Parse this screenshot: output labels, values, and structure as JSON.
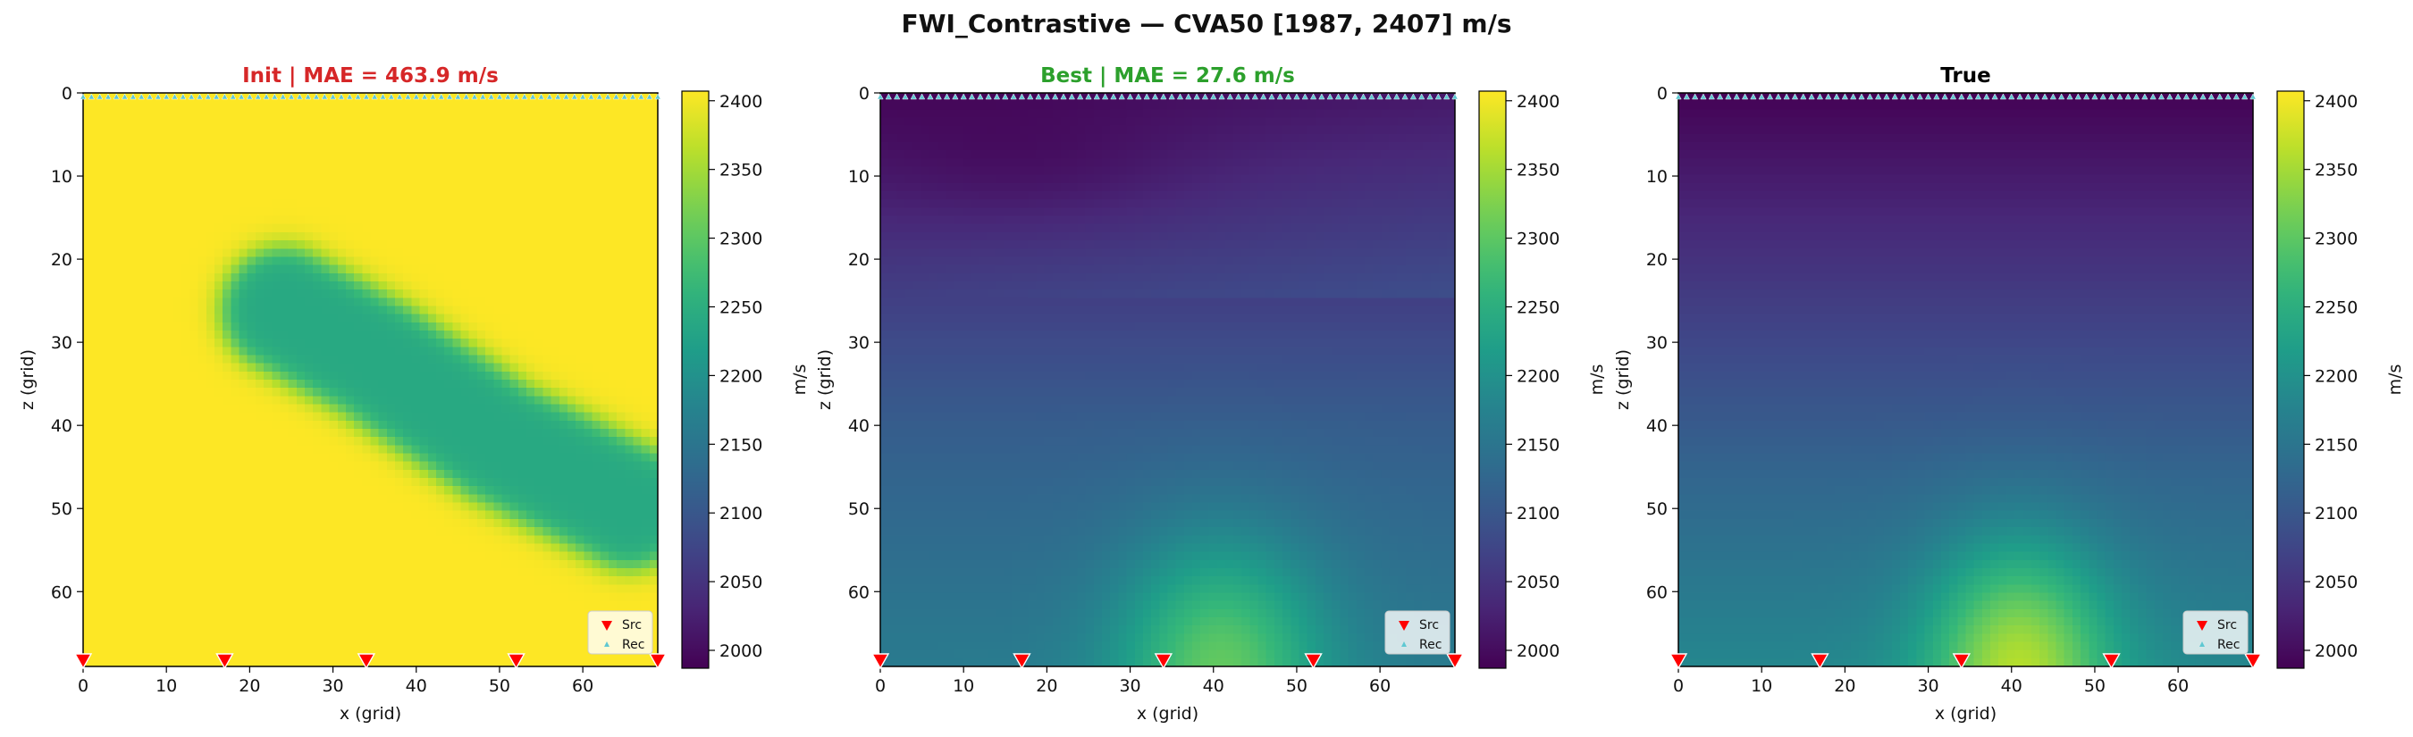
{
  "figure": {
    "suptitle": "FWI_Contrastive — CVA50 [1987, 2407] m/s"
  },
  "colors": {
    "init_title": "#d62728",
    "best_title": "#2ca02c",
    "true_title": "#000000",
    "src_marker": "#ff0000",
    "rec_marker": "#5fc8d2"
  },
  "colormap": "viridis",
  "chart_data": [
    {
      "type": "heatmap",
      "panel": "init",
      "title": "Init  |  MAE = 463.9 m/s",
      "xlabel": "x (grid)",
      "ylabel": "z (grid)",
      "xlim": [
        0,
        69
      ],
      "ylim": [
        69,
        0
      ],
      "xticks": [
        0,
        10,
        20,
        30,
        40,
        50,
        60
      ],
      "yticks": [
        0,
        10,
        20,
        30,
        40,
        50,
        60
      ],
      "colorbar": {
        "label": "m/s",
        "vmin": 1987,
        "vmax": 2407,
        "ticks": [
          2000,
          2050,
          2100,
          2150,
          2200,
          2250,
          2300,
          2350,
          2400
        ]
      },
      "field": {
        "description_values_ms": {
          "background": 2407,
          "anomaly_core": 2240
        },
        "anomaly_path": [
          [
            24,
            26
          ],
          [
            35,
            32
          ],
          [
            50,
            42
          ],
          [
            66,
            50
          ]
        ]
      },
      "sources_x": [
        0,
        17,
        34,
        52,
        69
      ],
      "legend": {
        "position": "lower-right",
        "entries": [
          "Src",
          "Rec"
        ]
      }
    },
    {
      "type": "heatmap",
      "panel": "best",
      "title": "Best  |  MAE = 27.6 m/s",
      "xlabel": "x (grid)",
      "ylabel": "z (grid)",
      "xlim": [
        0,
        69
      ],
      "ylim": [
        69,
        0
      ],
      "xticks": [
        0,
        10,
        20,
        30,
        40,
        50,
        60
      ],
      "yticks": [
        0,
        10,
        20,
        30,
        40,
        50,
        60
      ],
      "colorbar": {
        "label": "m/s",
        "vmin": 1987,
        "vmax": 2407,
        "ticks": [
          2000,
          2050,
          2100,
          2150,
          2200,
          2250,
          2300,
          2350,
          2400
        ]
      },
      "field": {
        "top_value": 1995,
        "mid_value": 2110,
        "bottom_peak": {
          "x": 41,
          "z": 69,
          "value": 2330
        }
      },
      "sources_x": [
        0,
        17,
        34,
        52,
        69
      ],
      "legend": {
        "position": "lower-right",
        "entries": [
          "Src",
          "Rec"
        ]
      }
    },
    {
      "type": "heatmap",
      "panel": "true",
      "title": "True",
      "xlabel": "x (grid)",
      "ylabel": "z (grid)",
      "xlim": [
        0,
        69
      ],
      "ylim": [
        69,
        0
      ],
      "xticks": [
        0,
        10,
        20,
        30,
        40,
        50,
        60
      ],
      "yticks": [
        0,
        10,
        20,
        30,
        40,
        50,
        60
      ],
      "colorbar": {
        "label": "m/s",
        "vmin": 1987,
        "vmax": 2407,
        "ticks": [
          2000,
          2050,
          2100,
          2150,
          2200,
          2250,
          2300,
          2350,
          2400
        ]
      },
      "field": {
        "top_value": 1990,
        "mid_value": 2120,
        "bottom_peak": {
          "x": 41,
          "z": 69,
          "value": 2405
        }
      },
      "sources_x": [
        0,
        17,
        34,
        52,
        69
      ],
      "legend": {
        "position": "lower-right",
        "entries": [
          "Src",
          "Rec"
        ]
      }
    }
  ]
}
